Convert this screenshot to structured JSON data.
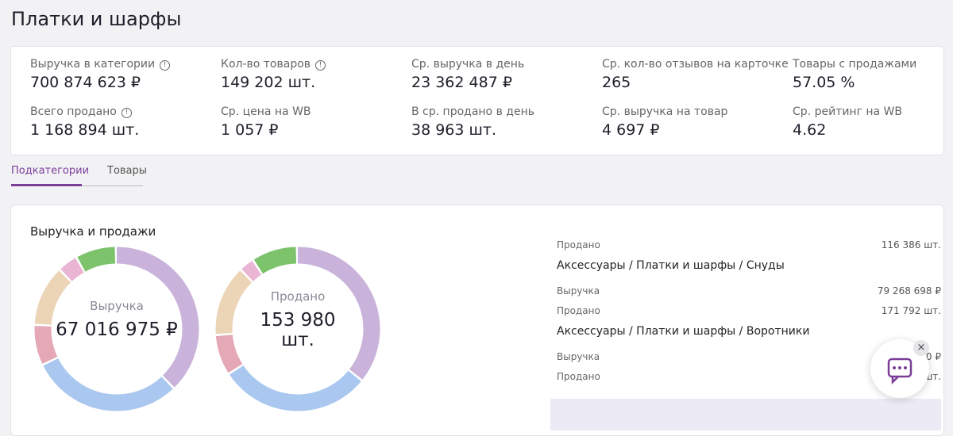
{
  "header": {
    "title": "Платки и шарфы"
  },
  "stats": [
    {
      "label": "Выручка в категории",
      "value": "700 874 623 ₽"
    },
    {
      "label": "Кол-во товаров",
      "value": "149 202 шт."
    },
    {
      "label": "Ср. выручка в день",
      "value": "23 362 487 ₽"
    },
    {
      "label": "Ср. кол-во отзывов на карточке",
      "value": "265"
    },
    {
      "label": "Товары с продажами",
      "value": "57.05 %"
    },
    {
      "label": "Всего продано",
      "value": "1 168 894 шт."
    },
    {
      "label": "Ср. цена на WB",
      "value": "1 057 ₽"
    },
    {
      "label": "В ср. продано в день",
      "value": "38 963 шт."
    },
    {
      "label": "Ср. выручка на товар",
      "value": "4 697 ₽"
    },
    {
      "label": "Ср. рейтинг на WB",
      "value": "4.62"
    }
  ],
  "tabs": [
    "Подкатегории",
    "Товары"
  ],
  "panel": {
    "title": "Выручка и продажи"
  },
  "donuts": [
    {
      "label": "Выручка",
      "value_lines": [
        "67 016 975 ₽"
      ],
      "segments": [
        {
          "color": "#c9b3da",
          "value": 38
        },
        {
          "color": "#aac8ef",
          "value": 30
        },
        {
          "color": "#e4a8b6",
          "value": 8
        },
        {
          "color": "#ecd4b6",
          "value": 12
        },
        {
          "color": "#e9b5d3",
          "value": 4
        },
        {
          "color": "#7cc36c",
          "value": 8
        }
      ]
    },
    {
      "label": "Продано",
      "value_lines": [
        "153 980",
        "шт."
      ],
      "segments": [
        {
          "color": "#c9b3da",
          "value": 36
        },
        {
          "color": "#aac8ef",
          "value": 30
        },
        {
          "color": "#e4a8b6",
          "value": 8
        },
        {
          "color": "#ecd4b6",
          "value": 14
        },
        {
          "color": "#e9b5d3",
          "value": 3
        },
        {
          "color": "#7cc36c",
          "value": 9
        }
      ]
    }
  ],
  "list": [
    {
      "type": "row",
      "label": "Продано",
      "value": "116 386 шт."
    },
    {
      "type": "heading",
      "label": "Аксессуары / Платки и шарфы / Снуды"
    },
    {
      "type": "row",
      "label": "Выручка",
      "value": "79 268 698 ₽"
    },
    {
      "type": "row",
      "label": "Продано",
      "value": "171 792 шт."
    },
    {
      "type": "heading",
      "label": "Аксессуары / Платки и шарфы / Воротники"
    },
    {
      "type": "row",
      "label": "Выручка",
      "value": "0 ₽"
    },
    {
      "type": "row",
      "label": "Продано",
      "value": "шт."
    }
  ]
}
